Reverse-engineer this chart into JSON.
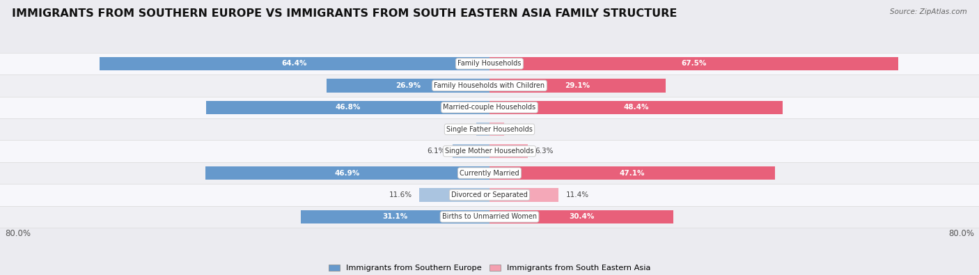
{
  "title": "IMMIGRANTS FROM SOUTHERN EUROPE VS IMMIGRANTS FROM SOUTH EASTERN ASIA FAMILY STRUCTURE",
  "source": "Source: ZipAtlas.com",
  "categories": [
    "Family Households",
    "Family Households with Children",
    "Married-couple Households",
    "Single Father Households",
    "Single Mother Households",
    "Currently Married",
    "Divorced or Separated",
    "Births to Unmarried Women"
  ],
  "left_values": [
    64.4,
    26.9,
    46.8,
    2.2,
    6.1,
    46.9,
    11.6,
    31.1
  ],
  "right_values": [
    67.5,
    29.1,
    48.4,
    2.4,
    6.3,
    47.1,
    11.4,
    30.4
  ],
  "left_color_strong": "#6699cc",
  "left_color_light": "#aac4e0",
  "right_color_strong": "#e8607a",
  "right_color_light": "#f4a8b8",
  "left_color_legend": "#6699cc",
  "right_color_legend": "#f4a0b0",
  "strong_threshold": 15,
  "max_val": 80.0,
  "left_legend": "Immigrants from Southern Europe",
  "right_legend": "Immigrants from South Eastern Asia",
  "background_color": "#ebebf0",
  "row_bg_even": "#f5f5f8",
  "row_bg_odd": "#ebebef",
  "title_fontsize": 11.5,
  "bar_height": 0.62,
  "label_inside_threshold": 15
}
